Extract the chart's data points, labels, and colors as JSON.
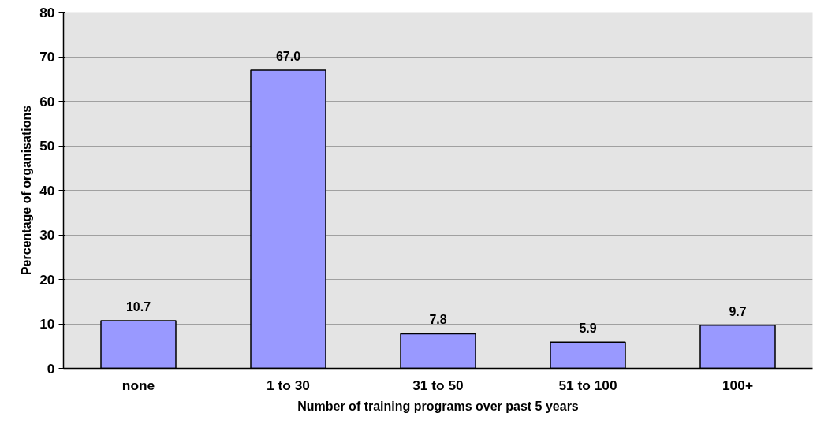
{
  "chart_data": {
    "type": "bar",
    "xlabel": "Number of training programs over past 5 years",
    "ylabel": "Percentage of organisations",
    "categories": [
      "none",
      "1 to 30",
      "31 to 50",
      "51 to 100",
      "100+"
    ],
    "values": [
      10.7,
      67.0,
      7.8,
      5.9,
      9.7
    ],
    "color": "#9999ff",
    "ylim": [
      0,
      80
    ],
    "yticks": [
      0,
      10,
      20,
      30,
      40,
      50,
      60,
      70,
      80
    ],
    "value_labels": [
      "10.7",
      "67.0",
      "7.8",
      "5.9",
      "9.7"
    ],
    "grid": "y"
  }
}
